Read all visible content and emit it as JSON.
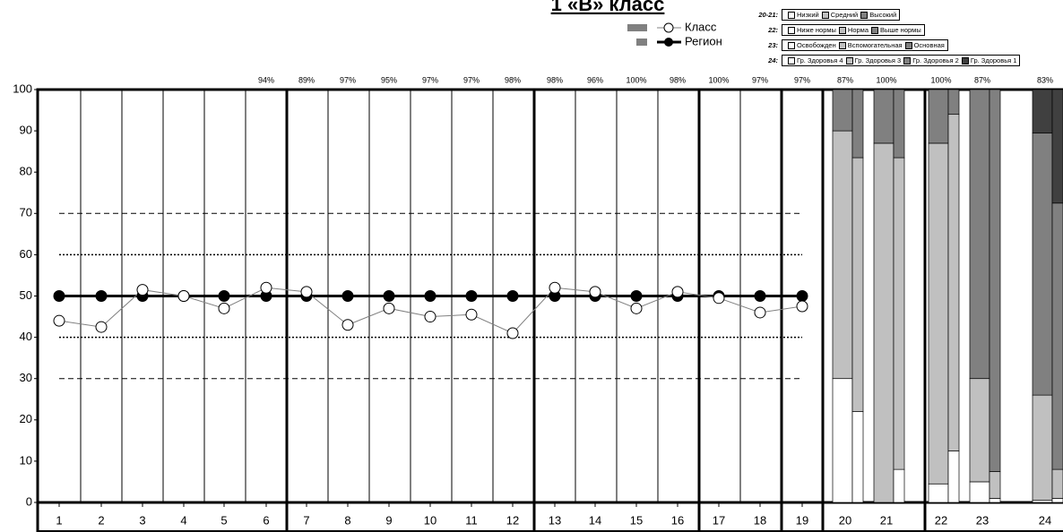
{
  "chart_data": [
    {
      "type": "line",
      "title": "1 «В» класс",
      "categories": [
        "1",
        "2",
        "3",
        "4",
        "5",
        "6",
        "7",
        "8",
        "9",
        "10",
        "11",
        "12",
        "13",
        "14",
        "15",
        "16",
        "17",
        "18",
        "19"
      ],
      "top_labels": [
        null,
        null,
        null,
        null,
        null,
        "94%",
        "89%",
        "97%",
        "95%",
        "97%",
        "97%",
        "98%",
        "98%",
        "96%",
        "100%",
        "98%",
        "100%",
        "97%",
        "97%"
      ],
      "series": [
        {
          "name": "Класс",
          "color": "#808080",
          "values": [
            44,
            42.5,
            51.5,
            50,
            47,
            52,
            51,
            43,
            47,
            45,
            45.5,
            41,
            52,
            51,
            47,
            51,
            49.5,
            46,
            47.5
          ]
        },
        {
          "name": "Регион",
          "color": "#000000",
          "values": [
            50,
            50,
            50,
            50,
            50,
            50,
            50,
            50,
            50,
            50,
            50,
            50,
            50,
            50,
            50,
            50,
            50,
            50,
            50
          ]
        }
      ],
      "reference_lines": [
        {
          "value": 70,
          "style": "dashed"
        },
        {
          "value": 60,
          "style": "dotted"
        },
        {
          "value": 40,
          "style": "dotted"
        },
        {
          "value": 30,
          "style": "dashed"
        }
      ],
      "ylim": [
        0,
        100
      ],
      "yticks": [
        0,
        10,
        20,
        30,
        40,
        50,
        60,
        70,
        80,
        90,
        100
      ]
    },
    {
      "type": "bar",
      "stacked": true,
      "categories": [
        "20",
        "21",
        "22",
        "23",
        "24"
      ],
      "top_labels": [
        "87%",
        "100%",
        "100%",
        "87%",
        "83%"
      ],
      "legend": [
        {
          "label": "20-21:",
          "items": [
            {
              "name": "Низкий",
              "color": "#ffffff"
            },
            {
              "name": "Средний",
              "color": "#c0c0c0"
            },
            {
              "name": "Высокий",
              "color": "#808080"
            }
          ]
        },
        {
          "label": "22:",
          "items": [
            {
              "name": "Ниже нормы",
              "color": "#ffffff"
            },
            {
              "name": "Норма",
              "color": "#c0c0c0"
            },
            {
              "name": "Выше нормы",
              "color": "#808080"
            }
          ]
        },
        {
          "label": "23:",
          "items": [
            {
              "name": "Освобожден",
              "color": "#ffffff"
            },
            {
              "name": "Вспомогательная",
              "color": "#c0c0c0"
            },
            {
              "name": "Основная",
              "color": "#808080"
            }
          ]
        },
        {
          "label": "24:",
          "items": [
            {
              "name": "Гр. Здоровья 4",
              "color": "#ffffff"
            },
            {
              "name": "Гр. Здоровья 3",
              "color": "#c0c0c0"
            },
            {
              "name": "Гр. Здоровья 2",
              "color": "#808080"
            },
            {
              "name": "Гр. Здоровья 1",
              "color": "#404040"
            }
          ]
        }
      ],
      "stacks": [
        {
          "colors": [
            "#ffffff",
            "#c0c0c0",
            "#808080"
          ],
          "class": [
            30,
            60,
            10
          ],
          "region": [
            22,
            61.5,
            16.5
          ]
        },
        {
          "colors": [
            "#ffffff",
            "#c0c0c0",
            "#808080"
          ],
          "class": [
            0,
            87,
            13
          ],
          "region": [
            8,
            75.5,
            16.5
          ]
        },
        {
          "colors": [
            "#ffffff",
            "#c0c0c0",
            "#808080"
          ],
          "class": [
            4.5,
            82.5,
            13
          ],
          "region": [
            12.5,
            81.5,
            6
          ]
        },
        {
          "colors": [
            "#ffffff",
            "#c0c0c0",
            "#808080"
          ],
          "class": [
            5,
            25,
            70
          ],
          "region": [
            1,
            6.5,
            92.5
          ]
        },
        {
          "colors": [
            "#ffffff",
            "#c0c0c0",
            "#808080",
            "#404040"
          ],
          "class": [
            0.5,
            25.5,
            63.5,
            10.5
          ],
          "region": [
            1,
            7,
            64.5,
            27.5
          ]
        }
      ]
    }
  ]
}
